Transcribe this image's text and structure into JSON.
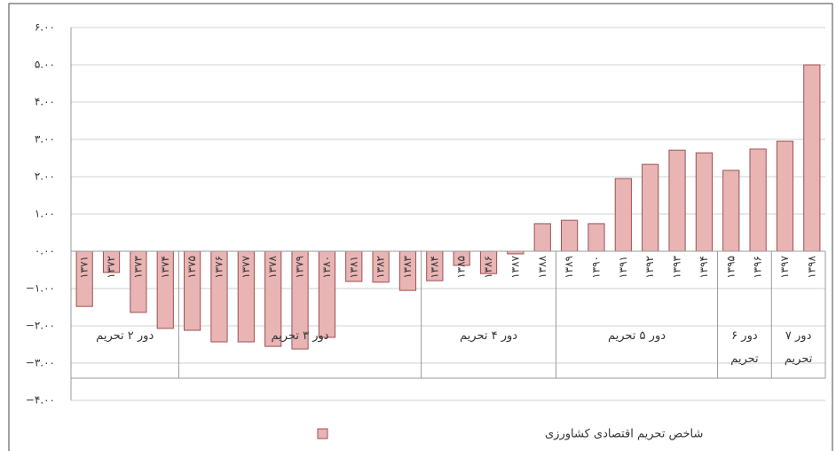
{
  "chart_data": {
    "type": "bar",
    "categories": [
      "۱۳۷۱",
      "۱۳۷۲",
      "۱۳۷۳",
      "۱۳۷۴",
      "۱۳۷۵",
      "۱۳۷۶",
      "۱۳۷۷",
      "۱۳۷۸",
      "۱۳۷۹",
      "۱۳۸۰",
      "۱۳۸۱",
      "۱۳۸۲",
      "۱۳۸۳",
      "۱۳۸۴",
      "۱۳۸۵",
      "۱۳۸۶",
      "۱۳۸۷",
      "۱۳۸۸",
      "۱۳۸۹",
      "۱۳۹۰",
      "۱۳۹۱",
      "۱۳۹۲",
      "۱۳۹۳",
      "۱۳۹۴",
      "۱۳۹۵",
      "۱۳۹۶",
      "۱۳۹۷",
      "۱۳۹۸"
    ],
    "category_groups": [
      "دور ۲ تحریم",
      null,
      null,
      null,
      "دور ۳ تحریم",
      null,
      null,
      null,
      null,
      null,
      null,
      null,
      null,
      "دور ۴ تحریم",
      null,
      null,
      null,
      null,
      "دور ۵ تحریم",
      null,
      null,
      null,
      null,
      null,
      "دور ۶ تحریم",
      null,
      "دور ۷ تحریم",
      null
    ],
    "series": [
      {
        "name": "شاخص تحریم اقتصادی کشاورزی",
        "color": "#e8b4b4",
        "values": [
          -1.48,
          -0.57,
          -1.64,
          -2.07,
          -2.12,
          -2.43,
          -2.43,
          -2.55,
          -2.62,
          -2.31,
          -0.81,
          -0.83,
          -1.05,
          -0.79,
          -0.38,
          -0.6,
          -0.07,
          0.74,
          0.83,
          0.74,
          1.95,
          2.33,
          2.71,
          2.64,
          2.17,
          2.74,
          2.95,
          5.0
        ]
      }
    ],
    "ylim": [
      -4,
      6
    ],
    "yticks": [
      {
        "value": -4,
        "label": "−۴.۰۰"
      },
      {
        "value": -3,
        "label": "−۳.۰۰"
      },
      {
        "value": -2,
        "label": "−۲.۰۰"
      },
      {
        "value": -1,
        "label": "−۱.۰۰"
      },
      {
        "value": 0,
        "label": "۰.۰۰"
      },
      {
        "value": 1,
        "label": "۱.۰۰"
      },
      {
        "value": 2,
        "label": "۲.۰۰"
      },
      {
        "value": 3,
        "label": "۳.۰۰"
      },
      {
        "value": 4,
        "label": "۴.۰۰"
      },
      {
        "value": 5,
        "label": "۵.۰۰"
      },
      {
        "value": 6,
        "label": "۶.۰۰"
      }
    ],
    "grid": true
  }
}
